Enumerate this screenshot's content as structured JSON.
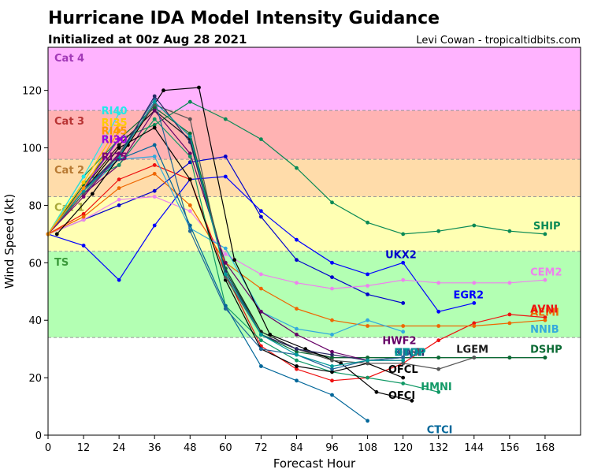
{
  "chart_data": {
    "type": "line",
    "title": "Hurricane IDA Model Intensity Guidance",
    "subtitle": "Initialized at 00z Aug 28 2021",
    "credit": "Levi Cowan - tropicaltidbits.com",
    "xlabel": "Forecast Hour",
    "ylabel": "Wind Speed (kt)",
    "xlim": [
      0,
      180
    ],
    "ylim": [
      0,
      135
    ],
    "x_ticks": [
      0,
      12,
      24,
      36,
      48,
      60,
      72,
      84,
      96,
      108,
      120,
      132,
      144,
      156,
      168
    ],
    "y_ticks": [
      0,
      20,
      40,
      60,
      80,
      100,
      120
    ],
    "bands": [
      {
        "label": "",
        "from": 0,
        "to": 34,
        "color": "#ffffff",
        "text_color": "#000000"
      },
      {
        "label": "TS",
        "from": 34,
        "to": 64,
        "color": "#b3ffb3",
        "text_color": "#3a9a3a"
      },
      {
        "label": "Cat 1",
        "from": 64,
        "to": 83,
        "color": "#ffffb3",
        "text_color": "#a8a83a"
      },
      {
        "label": "Cat 2",
        "from": 83,
        "to": 96,
        "color": "#ffdcaa",
        "text_color": "#b87a33"
      },
      {
        "label": "Cat 3",
        "from": 96,
        "to": 113,
        "color": "#ffb3b3",
        "text_color": "#b83333"
      },
      {
        "label": "Cat 4",
        "from": 113,
        "to": 135,
        "color": "#ffb3ff",
        "text_color": "#a33ab8"
      }
    ],
    "series": [
      {
        "name": "SHIP",
        "color": "#0a8a55",
        "x": [
          0,
          12,
          24,
          36,
          48,
          60,
          72,
          84,
          96,
          108,
          120,
          132,
          144,
          156,
          168
        ],
        "values": [
          70,
          90,
          103,
          108,
          116,
          110,
          103,
          93,
          81,
          74,
          70,
          71,
          73,
          71,
          70
        ]
      },
      {
        "name": "LGEM",
        "color": "#1a1a1a",
        "x": [
          0,
          12,
          24,
          36,
          48,
          60,
          72,
          84,
          96,
          108,
          120,
          132,
          144,
          156,
          168
        ],
        "values": [
          70,
          86,
          101,
          113,
          103,
          58,
          36,
          30,
          27,
          27,
          27,
          27,
          27,
          27,
          27
        ]
      },
      {
        "name": "DSHP",
        "color": "#0a6a33",
        "x": [
          0,
          12,
          24,
          36,
          48,
          60,
          72,
          84,
          96,
          108,
          120,
          132,
          144,
          156,
          168
        ],
        "values": [
          70,
          87,
          103,
          114,
          105,
          58,
          35,
          29,
          27,
          27,
          27,
          27,
          27,
          27,
          27
        ]
      },
      {
        "name": "UKX2",
        "color": "#0000cc",
        "x": [
          0,
          12,
          24,
          36,
          48,
          60,
          72,
          84,
          96,
          108,
          120
        ],
        "values": [
          70,
          75,
          80,
          85,
          95,
          97,
          76,
          61,
          55,
          49,
          46
        ]
      },
      {
        "name": "EGR2",
        "color": "#0000ff",
        "x": [
          0,
          12,
          24,
          36,
          48,
          60,
          72,
          84,
          96,
          108,
          120,
          132,
          144
        ],
        "values": [
          70,
          66,
          54,
          73,
          89,
          90,
          78,
          68,
          60,
          56,
          60,
          43,
          46
        ]
      },
      {
        "name": "CEM2",
        "color": "#ee82ee",
        "x": [
          0,
          12,
          24,
          36,
          48,
          60,
          72,
          84,
          96,
          108,
          120,
          132,
          144,
          156,
          168
        ],
        "values": [
          70,
          75,
          82,
          83,
          78,
          63,
          56,
          53,
          51,
          52,
          54,
          53,
          53,
          53,
          54
        ]
      },
      {
        "name": "AVNI",
        "color": "#ee1111",
        "x": [
          0,
          12,
          24,
          36,
          48,
          60,
          72,
          84,
          96,
          108,
          120,
          132,
          144,
          156,
          168
        ],
        "values": [
          70,
          77,
          89,
          94,
          89,
          56,
          31,
          23,
          19,
          20,
          25,
          33,
          39,
          42,
          41
        ]
      },
      {
        "name": "AEMI",
        "color": "#ee6600",
        "x": [
          0,
          12,
          24,
          36,
          48,
          60,
          72,
          84,
          96,
          108,
          120,
          132,
          144,
          156,
          168
        ],
        "values": [
          70,
          76,
          86,
          91,
          80,
          60,
          51,
          44,
          40,
          38,
          38,
          38,
          38,
          39,
          40
        ]
      },
      {
        "name": "NNIB",
        "color": "#33aadd",
        "x": [
          0,
          12,
          24,
          36,
          48,
          60,
          72,
          84,
          96,
          108,
          120
        ],
        "values": [
          70,
          84,
          96,
          97,
          72,
          65,
          43,
          37,
          35,
          40,
          36
        ]
      },
      {
        "name": "HWF2",
        "color": "#660066",
        "x": [
          0,
          12,
          24,
          36,
          48,
          60,
          72,
          84,
          96,
          108,
          120
        ],
        "values": [
          70,
          84,
          94,
          113,
          98,
          60,
          43,
          35,
          29,
          26,
          27
        ]
      },
      {
        "name": "HMNI",
        "color": "#119966",
        "x": [
          0,
          12,
          24,
          36,
          48,
          60,
          72,
          84,
          96,
          108,
          120,
          132
        ],
        "values": [
          70,
          88,
          94,
          110,
          97,
          45,
          33,
          26,
          22,
          20,
          18,
          15
        ]
      },
      {
        "name": "CTCI",
        "color": "#006699",
        "x": [
          0,
          12,
          24,
          36,
          48,
          60,
          72,
          84,
          96,
          108
        ],
        "values": [
          70,
          86,
          96,
          101,
          73,
          45,
          24,
          19,
          14,
          5
        ]
      },
      {
        "name": "OFCL",
        "color": "#000000",
        "x": [
          0,
          12,
          24,
          36,
          48,
          60,
          72,
          84,
          96,
          108,
          120
        ],
        "values": [
          70,
          85,
          100,
          107,
          89,
          54,
          30,
          24,
          22,
          25,
          20
        ]
      },
      {
        "name": "OFCI",
        "color": "#000000",
        "x": [
          3,
          15,
          27,
          39,
          51,
          63,
          75,
          87,
          99,
          111,
          123
        ],
        "values": [
          70,
          84,
          101,
          120,
          121,
          61,
          35,
          30,
          25,
          15,
          12
        ]
      },
      {
        "name": "KBJN",
        "color": "#226699",
        "x": [
          0,
          12,
          24,
          36,
          48,
          60,
          72,
          84,
          96,
          108,
          120
        ],
        "values": [
          70,
          85,
          98,
          117,
          71,
          44,
          30,
          28,
          23,
          26,
          27
        ]
      },
      {
        "name": "GFSI",
        "color": "#555555",
        "x": [
          0,
          12,
          24,
          36,
          48,
          60,
          72,
          84,
          96,
          108,
          120,
          132,
          144
        ],
        "values": [
          70,
          84,
          98,
          115,
          110,
          55,
          35,
          30,
          26,
          25,
          25,
          23,
          27
        ]
      },
      {
        "name": "HWFI",
        "color": "#2a2a66",
        "x": [
          0,
          12,
          24,
          36,
          48,
          60,
          72,
          84,
          96,
          108,
          120
        ],
        "values": [
          70,
          86,
          97,
          118,
          102,
          57,
          35,
          30,
          28,
          26,
          26
        ]
      },
      {
        "name": "DTOP",
        "color": "#009999",
        "x": [
          0,
          12,
          24,
          36,
          48,
          60,
          72,
          84,
          96,
          108,
          120
        ],
        "values": [
          70,
          85,
          97,
          116,
          104,
          56,
          35,
          28,
          24,
          26,
          26
        ]
      },
      {
        "name": "RI40",
        "color": "#22e8e8",
        "x": [
          0,
          12,
          24
        ],
        "values": [
          70,
          90,
          112
        ]
      },
      {
        "name": "RI35",
        "color": "#ffcc00",
        "x": [
          0,
          12,
          24
        ],
        "values": [
          70,
          88,
          108
        ]
      },
      {
        "name": "RI30",
        "color": "#9900dd",
        "x": [
          0,
          12,
          24
        ],
        "values": [
          70,
          86,
          103
        ]
      },
      {
        "name": "RI25",
        "color": "#770077",
        "x": [
          0,
          12,
          24
        ],
        "values": [
          70,
          83,
          98
        ]
      },
      {
        "name": "RI45",
        "color": "#ff9900",
        "x": [
          0,
          12,
          24
        ],
        "values": [
          70,
          86,
          106
        ]
      }
    ],
    "labels": [
      {
        "text": "RI40",
        "color": "#22e8e8",
        "x": 18,
        "y": 113
      },
      {
        "text": "RI35",
        "color": "#ffcc00",
        "x": 18,
        "y": 109
      },
      {
        "text": "RI45",
        "color": "#ff9900",
        "x": 18,
        "y": 106
      },
      {
        "text": "RI30",
        "color": "#9900dd",
        "x": 18,
        "y": 103
      },
      {
        "text": "RI25",
        "color": "#770077",
        "x": 18,
        "y": 97
      },
      {
        "text": "SHIP",
        "color": "#0a8a55",
        "x": 164,
        "y": 73
      },
      {
        "text": "UKX2",
        "color": "#0000cc",
        "x": 114,
        "y": 63
      },
      {
        "text": "CEM2",
        "color": "#ee82ee",
        "x": 163,
        "y": 57
      },
      {
        "text": "EGR2",
        "color": "#0000ff",
        "x": 137,
        "y": 49
      },
      {
        "text": "AEMI",
        "color": "#ee6600",
        "x": 163,
        "y": 43
      },
      {
        "text": "AVNI",
        "color": "#ee1111",
        "x": 163,
        "y": 44
      },
      {
        "text": "NNIB",
        "color": "#33aadd",
        "x": 163,
        "y": 37
      },
      {
        "text": "HWF2",
        "color": "#660066",
        "x": 113,
        "y": 33
      },
      {
        "text": "HWFI",
        "color": "#2a2a66",
        "x": 117,
        "y": 29
      },
      {
        "text": "GFSI",
        "color": "#555555",
        "x": 117,
        "y": 29
      },
      {
        "text": "KBJN",
        "color": "#226699",
        "x": 117,
        "y": 29
      },
      {
        "text": "DTOP",
        "color": "#009999",
        "x": 117,
        "y": 29
      },
      {
        "text": "LGEM",
        "color": "#1a1a1a",
        "x": 138,
        "y": 30
      },
      {
        "text": "DSHP",
        "color": "#0a6a33",
        "x": 163,
        "y": 30
      },
      {
        "text": "OFCL",
        "color": "#000000",
        "x": 115,
        "y": 23
      },
      {
        "text": "HMNI",
        "color": "#119966",
        "x": 126,
        "y": 17
      },
      {
        "text": "OFCI",
        "color": "#000000",
        "x": 115,
        "y": 14
      },
      {
        "text": "CTCI",
        "color": "#006699",
        "x": 128,
        "y": 2
      }
    ],
    "grid": false,
    "legend": "none"
  }
}
